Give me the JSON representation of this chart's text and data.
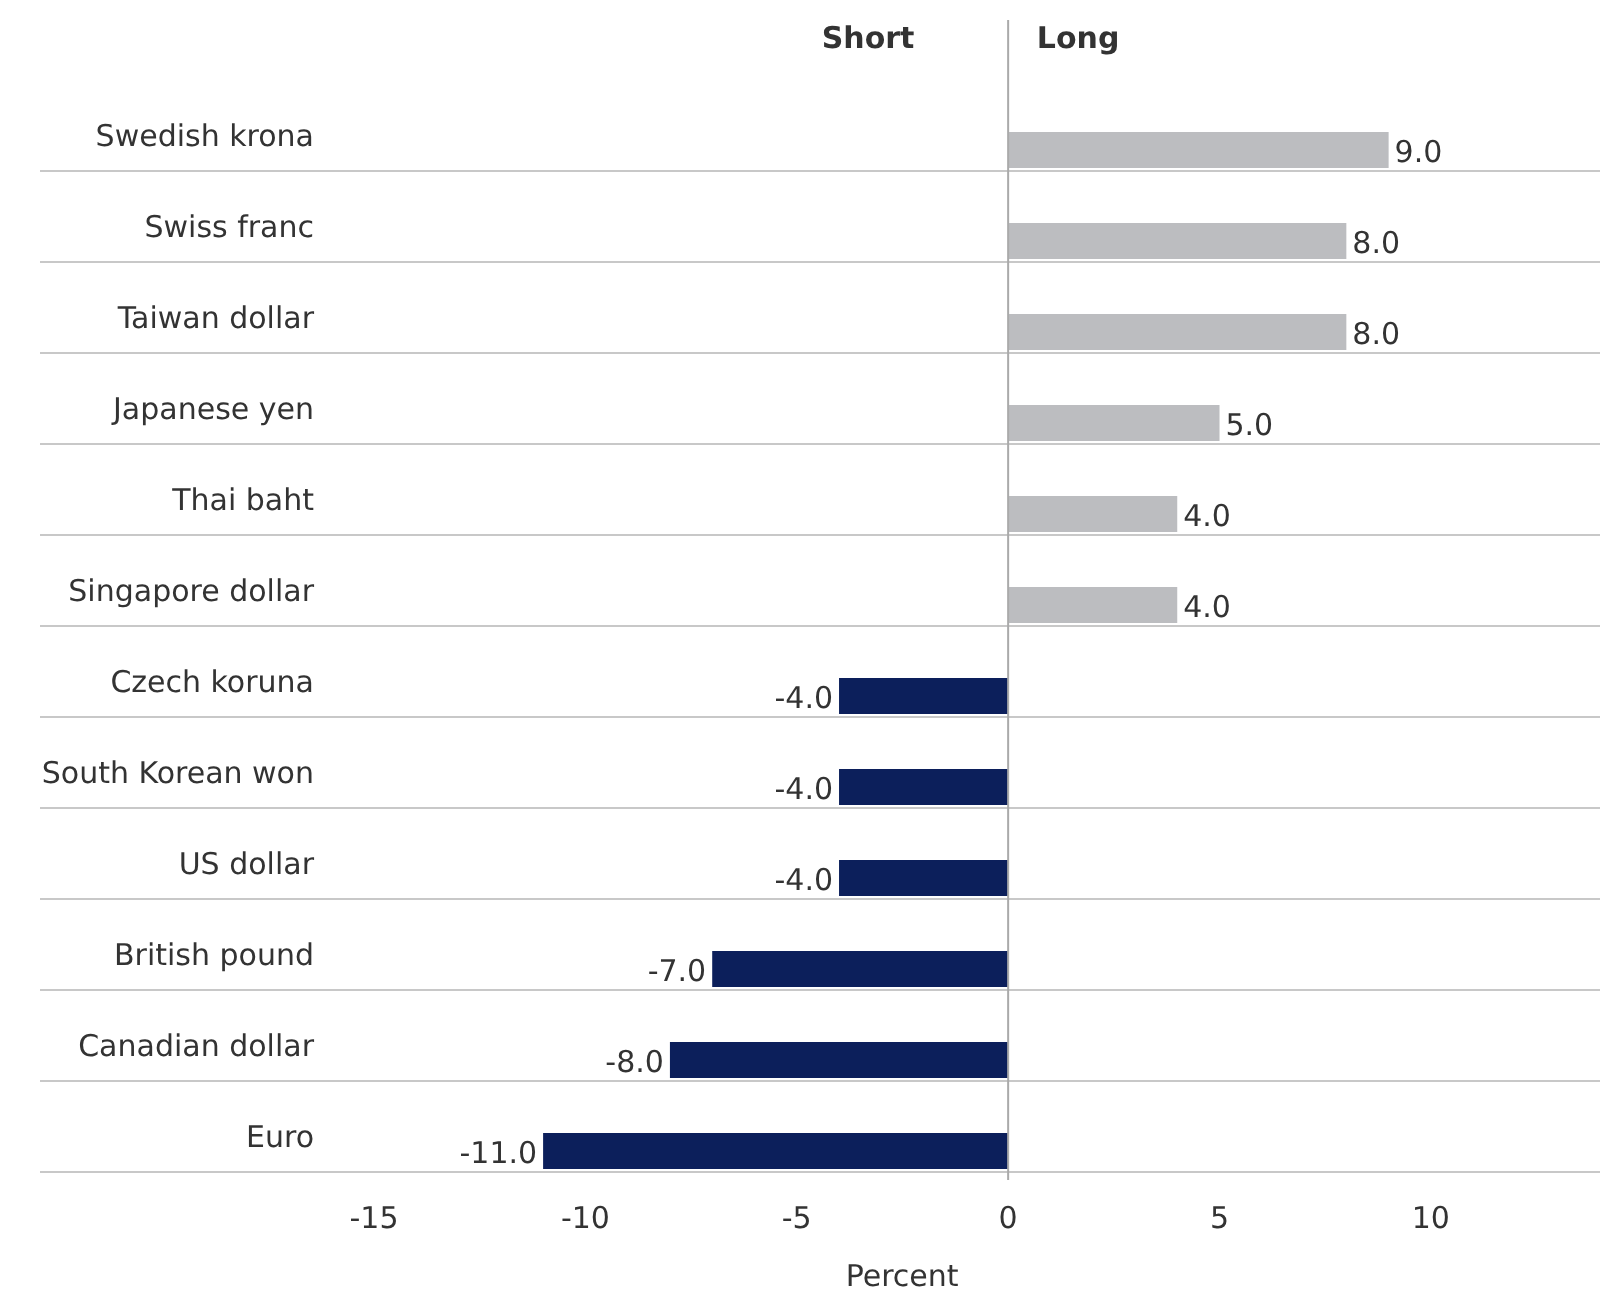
{
  "chart_data": {
    "type": "bar",
    "orientation": "horizontal",
    "xlabel": "Percent",
    "annotations": [
      "Short",
      "Long"
    ],
    "categories": [
      "Swedish krona",
      "Swiss franc",
      "Taiwan dollar",
      "Japanese yen",
      "Thai baht",
      "Singapore dollar",
      "Czech koruna",
      "South Korean won",
      "US dollar",
      "British pound",
      "Canadian dollar",
      "Euro"
    ],
    "values": [
      9,
      8,
      8,
      5,
      4,
      4,
      -4,
      -4,
      -4,
      -7,
      -8,
      -11
    ],
    "value_labels": [
      "9.0",
      "8.0",
      "8.0",
      "5.0",
      "4.0",
      "4.0",
      "-4.0",
      "-4.0",
      "-4.0",
      "-7.0",
      "-8.0",
      "-11.0"
    ],
    "colors": [
      "#bcbdc0",
      "#bcbdc0",
      "#bcbdc0",
      "#bcbdc0",
      "#bcbdc0",
      "#bcbdc0",
      "#0c1f5b",
      "#0c1f5b",
      "#0c1f5b",
      "#0c1f5b",
      "#0c1f5b",
      "#0c1f5b"
    ],
    "xlim": [
      -15,
      14
    ],
    "xticks": [
      -15,
      -10,
      -5,
      0,
      5,
      10
    ],
    "grid": "y"
  }
}
